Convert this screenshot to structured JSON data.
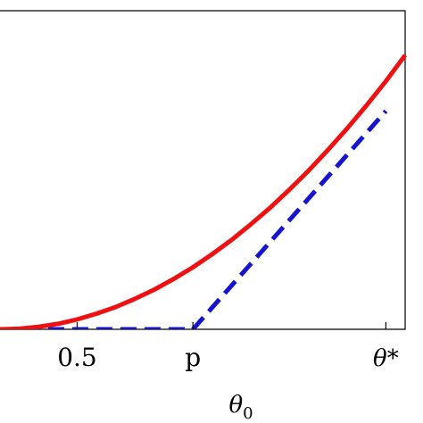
{
  "chart_data": {
    "type": "line",
    "title": "",
    "xlabel": "θ0",
    "xlabel_main": "θ",
    "xlabel_sub": "0",
    "ylabel": "",
    "xlim": [
      0.3,
      1.35
    ],
    "ylim": [
      0.0,
      1.0
    ],
    "grid": false,
    "legend": "none",
    "xticks": [
      {
        "value": 0.5,
        "label": "0.5",
        "italic": false
      },
      {
        "value": 0.8,
        "label": "p",
        "italic": false
      },
      {
        "value": 1.3,
        "label": "θ*",
        "italic": true
      }
    ],
    "series": [
      {
        "style": "solid",
        "color": "#ee1111",
        "x": [
          0.3,
          0.35,
          0.4,
          0.45,
          0.5,
          0.55,
          0.6,
          0.65,
          0.7,
          0.75,
          0.8,
          0.85,
          0.9,
          0.95,
          1.0,
          1.05,
          1.1,
          1.15,
          1.2,
          1.25,
          1.3,
          1.35
        ],
        "y": [
          0.0,
          0.002,
          0.01,
          0.022,
          0.04,
          0.063,
          0.09,
          0.123,
          0.16,
          0.203,
          0.25,
          0.303,
          0.36,
          0.423,
          0.49,
          0.563,
          0.64,
          0.723,
          0.81,
          0.903,
          1.0,
          1.105
        ]
      },
      {
        "style": "dashed",
        "color": "#1515d0",
        "x": [
          0.3,
          0.8,
          1.3
        ],
        "y": [
          0.0,
          0.0,
          0.88
        ]
      }
    ]
  }
}
